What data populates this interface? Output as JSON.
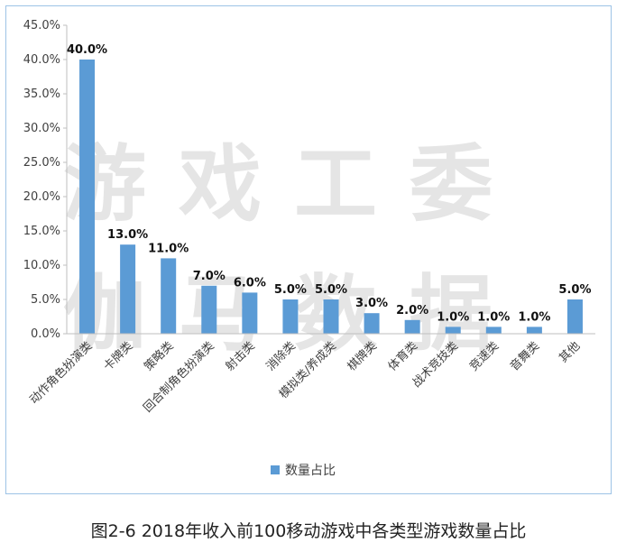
{
  "chart_data": {
    "type": "bar",
    "categories": [
      "动作角色扮演类",
      "卡牌类",
      "策略类",
      "回合制角色扮演类",
      "射击类",
      "消除类",
      "模拟类/养成类",
      "棋牌类",
      "体育类",
      "战术竞技类",
      "竞速类",
      "音舞类",
      "其他"
    ],
    "series": [
      {
        "name": "数量占比",
        "values": [
          40.0,
          13.0,
          11.0,
          7.0,
          6.0,
          5.0,
          5.0,
          3.0,
          2.0,
          1.0,
          1.0,
          1.0,
          5.0
        ]
      }
    ],
    "ylim": [
      0,
      45
    ],
    "yticks": [
      0,
      5,
      10,
      15,
      20,
      25,
      30,
      35,
      40,
      45
    ],
    "value_format": "percent_1dp",
    "grid": false,
    "legend_position": "bottom",
    "bar_color": "#5b9bd5"
  },
  "caption": "图2-6 2018年收入前100移动游戏中各类型游戏数量占比",
  "watermark": {
    "line1": [
      "游",
      "戏",
      "工",
      "委"
    ],
    "line2": [
      "伽",
      "马",
      "数",
      "据"
    ]
  }
}
